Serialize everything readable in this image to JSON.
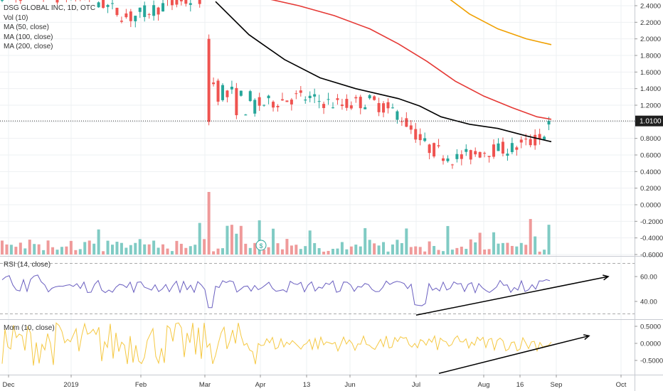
{
  "legend": {
    "title": "DSG GLOBAL INC, 1D, OTC",
    "items": [
      "Vol (10)",
      "MA (50, close)",
      "MA (100, close)",
      "MA (200, close)"
    ]
  },
  "price_badge": "1.0100",
  "rsi_label": "RSI (14, close)",
  "mom_label": "Mom (10, close)",
  "dividend_marker": "$",
  "colors": {
    "up": "#26a69a",
    "down": "#ef5350",
    "vol_up": "#80cbc4",
    "vol_down": "#ef9a9a",
    "ma50": "#000000",
    "ma100": "#e53935",
    "ma200": "#f0a000",
    "rsi": "#6a5fc0",
    "mom": "#f5c842",
    "trendline": "#000000"
  },
  "chart_data": [
    {
      "type": "candlestick",
      "title": "DSG GLOBAL INC, 1D, OTC",
      "x_ticks": [
        "Dec",
        "2019",
        "Feb",
        "Mar",
        "Apr",
        "13",
        "Jun",
        "Jul",
        "Aug",
        "16",
        "Sep",
        "Oct"
      ],
      "y_ticks": [
        "2.4000",
        "2.2000",
        "2.0000",
        "1.8000",
        "1.6000",
        "1.4000",
        "1.2000",
        "1.0000",
        "0.8000",
        "0.6000",
        "0.4000",
        "0.2000",
        "0.0000",
        "-0.2000",
        "-0.4000",
        "-0.6000"
      ],
      "ylim": [
        -0.6,
        2.48
      ],
      "last_price": 1.01,
      "moving_averages": [
        {
          "name": "MA (50, close)",
          "points": [
            [
              303,
              2.45
            ],
            [
              350,
              2.05
            ],
            [
              400,
              1.75
            ],
            [
              450,
              1.53
            ],
            [
              500,
              1.4
            ],
            [
              530,
              1.34
            ],
            [
              560,
              1.28
            ],
            [
              590,
              1.19
            ],
            [
              620,
              1.06
            ],
            [
              660,
              0.97
            ],
            [
              700,
              0.92
            ],
            [
              740,
              0.83
            ],
            [
              775,
              0.76
            ]
          ]
        },
        {
          "name": "MA (100, close)",
          "points": [
            [
              378,
              2.48
            ],
            [
              420,
              2.4
            ],
            [
              470,
              2.28
            ],
            [
              520,
              2.12
            ],
            [
              560,
              1.94
            ],
            [
              600,
              1.73
            ],
            [
              640,
              1.49
            ],
            [
              680,
              1.31
            ],
            [
              720,
              1.17
            ],
            [
              755,
              1.06
            ],
            [
              775,
              1.03
            ]
          ]
        },
        {
          "name": "MA (200, close)",
          "points": [
            [
              632,
              2.48
            ],
            [
              660,
              2.3
            ],
            [
              700,
              2.12
            ],
            [
              740,
              2.0
            ],
            [
              775,
              1.93
            ]
          ]
        }
      ]
    },
    {
      "type": "bar",
      "title": "Vol (10)"
    },
    {
      "type": "line",
      "title": "RSI (14, close)",
      "y_ticks": [
        "60.00",
        "40.00"
      ],
      "ylim": [
        26,
        74
      ],
      "trendline": [
        [
          585,
          29
        ],
        [
          855,
          60
        ]
      ]
    },
    {
      "type": "line",
      "title": "Mom (10, close)",
      "y_ticks": [
        "0.5000",
        "0.0000",
        "-0.5000"
      ],
      "ylim": [
        -1,
        0.6
      ],
      "trendline": [
        [
          617,
          -0.88
        ],
        [
          828,
          0.22
        ]
      ]
    }
  ]
}
